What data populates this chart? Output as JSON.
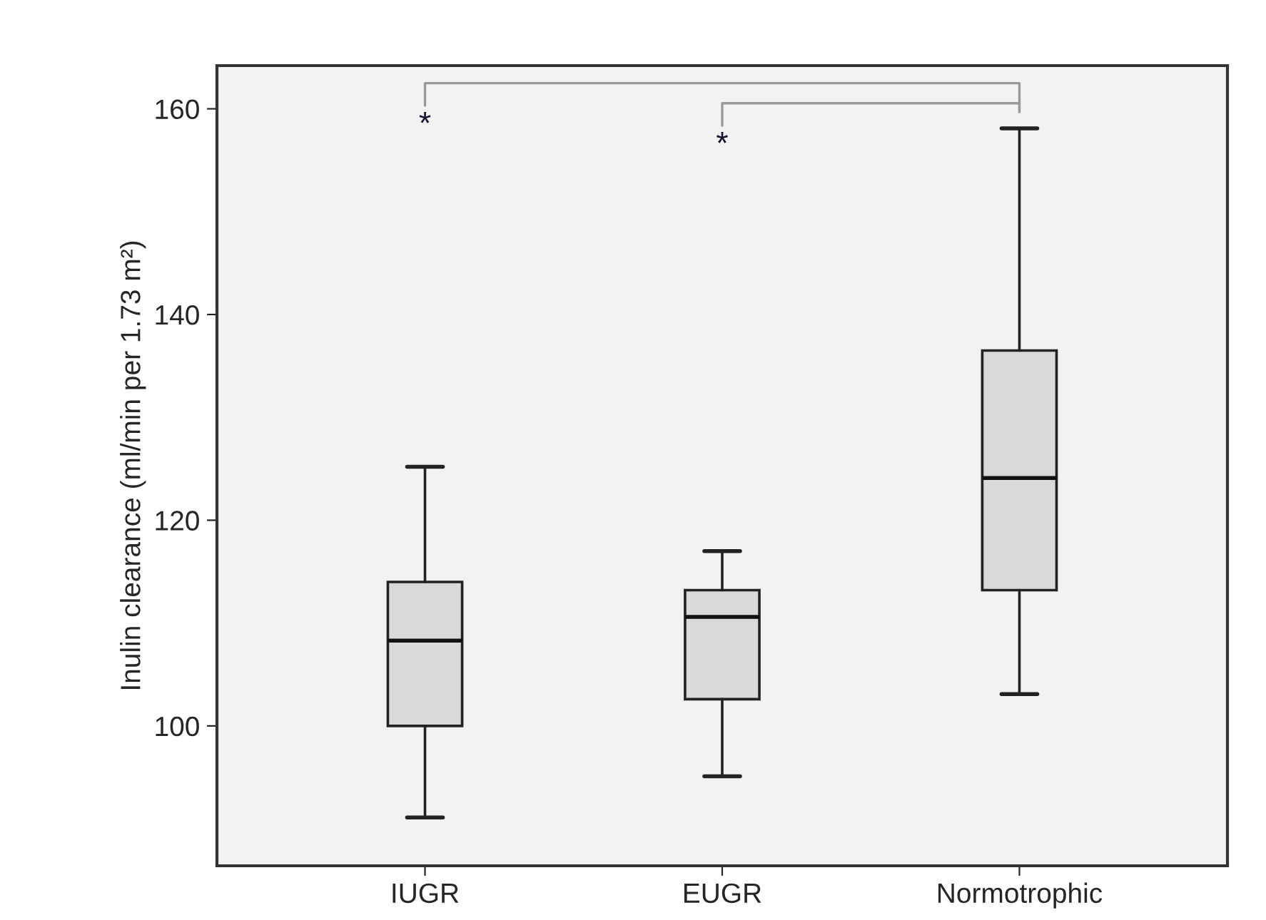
{
  "chart_data": {
    "type": "box",
    "ylabel": "Inulin clearance (ml/min per 1.73 m²)",
    "categories": [
      "IUGR",
      "EUGR",
      "Normotrophic"
    ],
    "boxes": [
      {
        "low": 91.1,
        "q1": 100.0,
        "median": 108.3,
        "q3": 114.0,
        "high": 125.2
      },
      {
        "low": 95.1,
        "q1": 102.6,
        "median": 110.6,
        "q3": 113.2,
        "high": 117.0
      },
      {
        "low": 103.1,
        "q1": 113.2,
        "median": 124.1,
        "q3": 136.5,
        "high": 158.1
      }
    ],
    "color": "#d9d9d9",
    "ylim": [
      86.4,
      164.2
    ],
    "yticks": [
      100,
      120,
      140,
      160
    ],
    "annotations": [
      "*",
      "*"
    ],
    "grid": false
  }
}
